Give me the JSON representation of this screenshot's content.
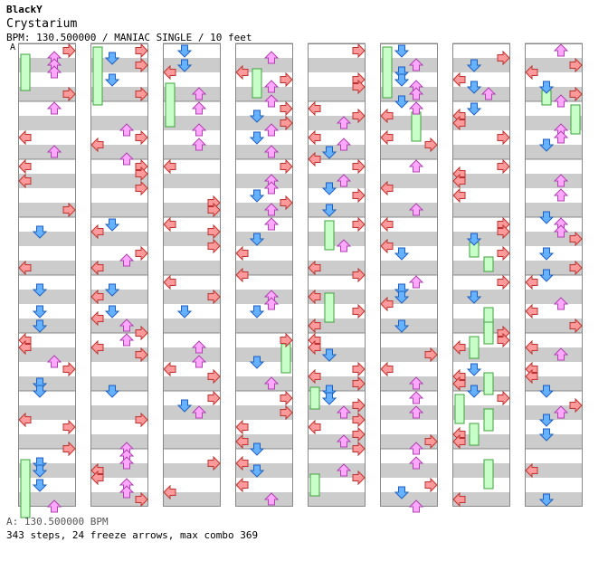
{
  "header": {
    "artist": "BlackY",
    "title": "Crystarium",
    "info": "BPM: 130.500000 / MANIAC SINGLE / 10 feet"
  },
  "marker": "A",
  "footer": {
    "bpm": "A: 130.500000 BPM",
    "stats": "343 steps, 24 freeze arrows, max combo 369"
  },
  "colors": {
    "left": "#ff9a9a",
    "down": "#66b2ff",
    "up": "#ffa8ff",
    "right": "#ff9a9a",
    "freeze": "#c8ffc8",
    "stripe": "#cccccc",
    "border": "#888888"
  },
  "chart_data": {
    "type": "step-chart",
    "lanes": [
      "left",
      "down",
      "up",
      "right"
    ],
    "columns": 8,
    "measures_per_column": 8,
    "total_measures": 64,
    "steps": 343,
    "freeze_arrows": 24,
    "max_combo": 369,
    "bpm": 130.5
  }
}
